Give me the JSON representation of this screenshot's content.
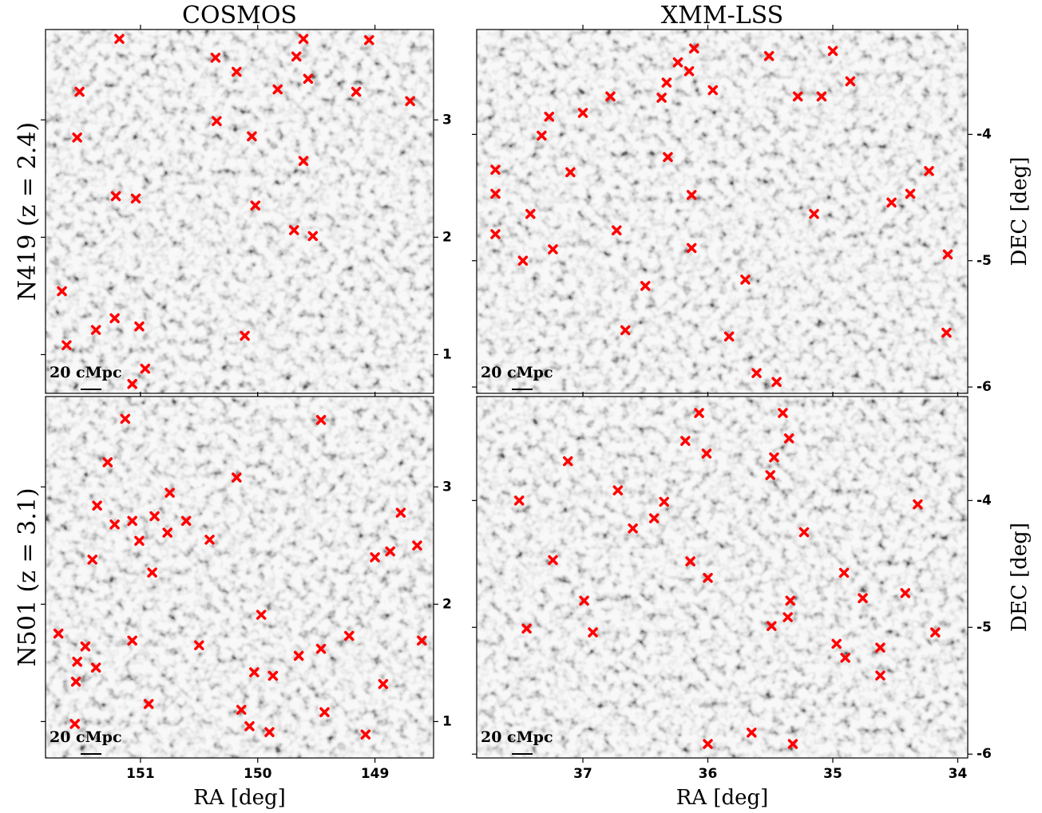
{
  "chart_data": [
    {
      "type": "scatter",
      "title": "COSMOS",
      "ylabel": "N419 (z = 2.4)",
      "scale_label": "20 cMpc",
      "marker_color": "#ff0000",
      "xlim": [
        151.81,
        148.5
      ],
      "ylim": [
        0.67,
        3.77
      ],
      "xticks": [
        151,
        150,
        149
      ],
      "yticks": [
        1,
        2,
        3
      ],
      "x": [
        151.18,
        150.36,
        150.18,
        149.67,
        149.61,
        149.05,
        151.52,
        149.83,
        149.57,
        149.16,
        148.7,
        151.54,
        150.35,
        150.05,
        149.61,
        151.21,
        151.04,
        150.02,
        149.69,
        149.53,
        151.67,
        151.22,
        151.01,
        151.38,
        150.11,
        151.63,
        150.96,
        151.07
      ],
      "y": [
        3.69,
        3.53,
        3.41,
        3.54,
        3.69,
        3.68,
        3.24,
        3.26,
        3.35,
        3.24,
        3.16,
        2.85,
        2.99,
        2.86,
        2.65,
        2.35,
        2.33,
        2.27,
        2.06,
        2.01,
        1.54,
        1.31,
        1.24,
        1.21,
        1.16,
        1.08,
        0.88,
        0.75
      ]
    },
    {
      "type": "scatter",
      "title": "XMM-LSS",
      "ylabel": "DEC [deg]",
      "scale_label": "20 cMpc",
      "marker_color": "#ff0000",
      "xlim": [
        37.85,
        33.92
      ],
      "ylim": [
        -6.05,
        -3.17
      ],
      "xticks": [
        37,
        36,
        35,
        34
      ],
      "yticks": [
        -6,
        -5,
        -4
      ],
      "x": [
        36.11,
        35.51,
        35.0,
        36.24,
        36.15,
        36.33,
        35.96,
        34.86,
        36.78,
        36.37,
        35.28,
        35.09,
        37.27,
        37.0,
        37.33,
        36.32,
        37.7,
        37.1,
        34.23,
        37.7,
        36.13,
        34.38,
        34.53,
        37.42,
        35.15,
        36.73,
        37.7,
        37.24,
        36.13,
        34.08,
        37.48,
        35.7,
        36.5,
        36.66,
        35.83,
        34.09,
        35.61,
        35.45
      ],
      "y": [
        -3.32,
        -3.38,
        -3.34,
        -3.43,
        -3.5,
        -3.59,
        -3.65,
        -3.58,
        -3.7,
        -3.71,
        -3.7,
        -3.7,
        -3.86,
        -3.83,
        -4.01,
        -4.18,
        -4.28,
        -4.3,
        -4.29,
        -4.47,
        -4.48,
        -4.47,
        -4.54,
        -4.63,
        -4.63,
        -4.76,
        -4.79,
        -4.91,
        -4.9,
        -4.95,
        -5.0,
        -5.15,
        -5.2,
        -5.55,
        -5.6,
        -5.57,
        -5.89,
        -5.96
      ]
    },
    {
      "type": "scatter",
      "xlabel": "RA [deg]",
      "ylabel": "N501 (z = 3.1)",
      "scale_label": "20 cMpc",
      "marker_color": "#ff0000",
      "xlim": [
        151.81,
        148.5
      ],
      "ylim": [
        0.69,
        3.77
      ],
      "xticks": [
        151,
        150,
        149
      ],
      "yticks": [
        1,
        2,
        3
      ],
      "x": [
        151.13,
        151.28,
        150.18,
        149.46,
        151.37,
        151.22,
        151.07,
        150.88,
        150.75,
        150.61,
        151.01,
        150.77,
        150.41,
        148.78,
        151.41,
        150.9,
        149.0,
        148.87,
        148.64,
        149.97,
        151.7,
        151.47,
        151.07,
        150.5,
        149.65,
        149.46,
        149.22,
        148.6,
        151.54,
        151.38,
        151.55,
        150.03,
        149.87,
        148.93,
        150.93,
        150.14,
        149.43,
        151.56,
        150.07,
        149.9,
        149.08
      ],
      "y": [
        3.58,
        3.21,
        3.08,
        3.57,
        2.84,
        2.68,
        2.71,
        2.75,
        2.95,
        2.71,
        2.54,
        2.61,
        2.55,
        2.78,
        2.38,
        2.27,
        2.4,
        2.45,
        2.5,
        1.91,
        1.75,
        1.64,
        1.69,
        1.65,
        1.56,
        1.62,
        1.73,
        1.69,
        1.51,
        1.46,
        1.34,
        1.42,
        1.39,
        1.32,
        1.15,
        1.1,
        1.08,
        0.98,
        0.96,
        0.91,
        0.89
      ]
    },
    {
      "type": "scatter",
      "xlabel": "RA [deg]",
      "ylabel": "DEC [deg]",
      "scale_label": "20 cMpc",
      "marker_color": "#ff0000",
      "xlim": [
        37.85,
        33.92
      ],
      "ylim": [
        -6.03,
        -3.18
      ],
      "xticks": [
        37,
        36,
        35,
        34
      ],
      "yticks": [
        -6,
        -5,
        -4
      ],
      "x": [
        36.07,
        35.4,
        36.18,
        35.35,
        36.01,
        37.12,
        35.47,
        35.5,
        36.72,
        36.35,
        37.51,
        34.32,
        36.43,
        35.23,
        36.6,
        37.24,
        36.14,
        36.0,
        34.91,
        36.99,
        34.76,
        34.42,
        35.34,
        35.36,
        35.49,
        37.45,
        36.92,
        34.18,
        34.97,
        34.62,
        34.9,
        34.62,
        36.0,
        35.65,
        35.32
      ],
      "y": [
        -3.31,
        -3.31,
        -3.53,
        -3.51,
        -3.63,
        -3.69,
        -3.66,
        -3.8,
        -3.92,
        -4.01,
        -4.0,
        -4.03,
        -4.14,
        -4.25,
        -4.22,
        -4.47,
        -4.48,
        -4.61,
        -4.57,
        -4.79,
        -4.77,
        -4.73,
        -4.79,
        -4.92,
        -4.99,
        -5.01,
        -5.04,
        -5.04,
        -5.13,
        -5.16,
        -5.24,
        -5.38,
        -5.92,
        -5.83,
        -5.92
      ]
    }
  ]
}
